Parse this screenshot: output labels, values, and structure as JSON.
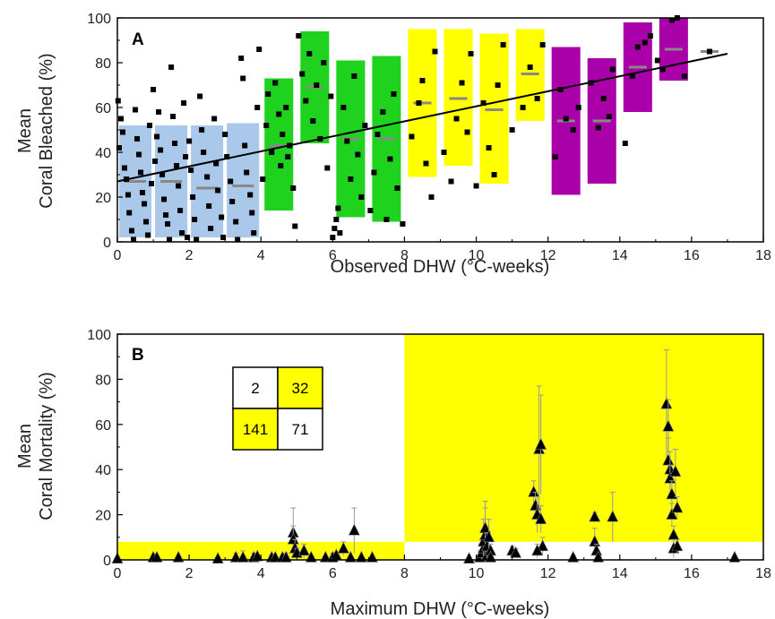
{
  "chart_data": [
    {
      "panel": "A",
      "type": "scatter",
      "xlabel": "Observed DHW (°C-weeks)",
      "ylabel": [
        "Mean",
        "Coral Bleached (%)"
      ],
      "xlim": [
        0,
        18
      ],
      "ylim": [
        0,
        100
      ],
      "xticks": [
        "0",
        "2",
        "4",
        "6",
        "8",
        "10",
        "12",
        "14",
        "16",
        "18"
      ],
      "yticks": [
        "0",
        "20",
        "40",
        "60",
        "80",
        "100"
      ],
      "colors": {
        "blue": "#a9c8ea",
        "green": "#1ed21e",
        "yellow": "#ffff00",
        "magenta": "#aa00aa",
        "median": "#888888",
        "points": "#000000"
      },
      "boxes": [
        {
          "x0": 0.05,
          "x1": 0.95,
          "low": 2,
          "high": 52,
          "median": 27,
          "color": "blue"
        },
        {
          "x0": 1.05,
          "x1": 1.95,
          "low": 2,
          "high": 52,
          "median": 27,
          "color": "blue"
        },
        {
          "x0": 2.05,
          "x1": 2.95,
          "low": 2,
          "high": 52,
          "median": 24,
          "color": "blue"
        },
        {
          "x0": 3.05,
          "x1": 3.95,
          "low": 2,
          "high": 53,
          "median": 25,
          "color": "blue"
        },
        {
          "x0": 4.1,
          "x1": 4.9,
          "low": 14,
          "high": 73,
          "median": 43,
          "color": "green"
        },
        {
          "x0": 5.1,
          "x1": 5.9,
          "low": 44,
          "high": 94,
          "median": 69,
          "color": "green"
        },
        {
          "x0": 6.1,
          "x1": 6.9,
          "low": 11,
          "high": 81,
          "median": 46,
          "color": "green"
        },
        {
          "x0": 7.1,
          "x1": 7.9,
          "low": 9,
          "high": 83,
          "median": 46,
          "color": "green"
        },
        {
          "x0": 8.1,
          "x1": 8.9,
          "low": 29,
          "high": 95,
          "median": 62,
          "color": "yellow"
        },
        {
          "x0": 9.1,
          "x1": 9.9,
          "low": 34,
          "high": 95,
          "median": 64,
          "color": "yellow"
        },
        {
          "x0": 10.1,
          "x1": 10.9,
          "low": 26,
          "high": 93,
          "median": 59,
          "color": "yellow"
        },
        {
          "x0": 11.1,
          "x1": 11.9,
          "low": 54,
          "high": 95,
          "median": 75,
          "color": "yellow"
        },
        {
          "x0": 12.1,
          "x1": 12.9,
          "low": 21,
          "high": 87,
          "median": 54,
          "color": "magenta"
        },
        {
          "x0": 13.1,
          "x1": 13.9,
          "low": 26,
          "high": 82,
          "median": 54,
          "color": "magenta"
        },
        {
          "x0": 14.1,
          "x1": 14.9,
          "low": 58,
          "high": 98,
          "median": 78,
          "color": "magenta"
        },
        {
          "x0": 15.1,
          "x1": 15.9,
          "low": 72,
          "high": 100,
          "median": 86,
          "color": "magenta"
        },
        {
          "x0": 16.1,
          "x1": 16.9,
          "low": 85,
          "high": 85,
          "median": 85,
          "color": "magenta"
        }
      ],
      "trend_line": {
        "x": [
          0,
          17
        ],
        "y": [
          27,
          84
        ]
      },
      "points": [
        [
          0.02,
          63
        ],
        [
          0.05,
          42
        ],
        [
          0.1,
          55
        ],
        [
          0.15,
          49
        ],
        [
          0.2,
          33
        ],
        [
          0.25,
          28
        ],
        [
          0.3,
          21
        ],
        [
          0.33,
          13
        ],
        [
          0.4,
          5
        ],
        [
          0.45,
          1
        ],
        [
          0.5,
          59
        ],
        [
          0.55,
          46
        ],
        [
          0.6,
          39
        ],
        [
          0.65,
          31
        ],
        [
          0.7,
          22
        ],
        [
          0.75,
          17
        ],
        [
          0.8,
          9
        ],
        [
          0.85,
          3
        ],
        [
          0.9,
          52
        ],
        [
          0.95,
          26
        ],
        [
          1.0,
          68
        ],
        [
          1.05,
          36
        ],
        [
          1.1,
          47
        ],
        [
          1.15,
          58
        ],
        [
          1.2,
          41
        ],
        [
          1.25,
          30
        ],
        [
          1.3,
          19
        ],
        [
          1.35,
          12
        ],
        [
          1.4,
          8
        ],
        [
          1.45,
          1
        ],
        [
          1.5,
          78
        ],
        [
          1.55,
          56
        ],
        [
          1.6,
          44
        ],
        [
          1.65,
          34
        ],
        [
          1.7,
          25
        ],
        [
          1.75,
          14
        ],
        [
          1.8,
          4
        ],
        [
          1.85,
          62
        ],
        [
          1.9,
          38
        ],
        [
          1.95,
          2
        ],
        [
          2.0,
          45
        ],
        [
          2.05,
          32
        ],
        [
          2.1,
          20
        ],
        [
          2.15,
          10
        ],
        [
          2.2,
          1
        ],
        [
          2.3,
          65
        ],
        [
          2.35,
          50
        ],
        [
          2.4,
          40
        ],
        [
          2.5,
          29
        ],
        [
          2.55,
          16
        ],
        [
          2.6,
          6
        ],
        [
          2.7,
          55
        ],
        [
          2.75,
          35
        ],
        [
          2.8,
          23
        ],
        [
          2.9,
          11
        ],
        [
          2.95,
          2
        ],
        [
          3.0,
          48
        ],
        [
          3.05,
          38
        ],
        [
          3.15,
          27
        ],
        [
          3.2,
          18
        ],
        [
          3.3,
          9
        ],
        [
          3.35,
          1
        ],
        [
          3.45,
          82
        ],
        [
          3.5,
          73
        ],
        [
          3.55,
          43
        ],
        [
          3.6,
          31
        ],
        [
          3.7,
          21
        ],
        [
          3.75,
          13
        ],
        [
          3.8,
          4
        ],
        [
          3.9,
          60
        ],
        [
          3.95,
          86
        ],
        [
          4.05,
          28
        ],
        [
          4.15,
          52
        ],
        [
          4.2,
          66
        ],
        [
          4.3,
          40
        ],
        [
          4.4,
          71
        ],
        [
          4.5,
          57
        ],
        [
          4.55,
          34
        ],
        [
          4.6,
          48
        ],
        [
          4.7,
          60
        ],
        [
          4.75,
          38
        ],
        [
          4.8,
          43
        ],
        [
          4.9,
          24
        ],
        [
          4.95,
          7
        ],
        [
          5.05,
          92
        ],
        [
          5.15,
          75
        ],
        [
          5.25,
          63
        ],
        [
          5.35,
          84
        ],
        [
          5.45,
          54
        ],
        [
          5.55,
          70
        ],
        [
          5.65,
          46
        ],
        [
          5.75,
          80
        ],
        [
          5.85,
          33
        ],
        [
          5.95,
          65
        ],
        [
          6.0,
          2
        ],
        [
          6.05,
          6
        ],
        [
          6.1,
          10
        ],
        [
          6.15,
          15
        ],
        [
          6.2,
          4
        ],
        [
          6.3,
          60
        ],
        [
          6.4,
          45
        ],
        [
          6.5,
          28
        ],
        [
          6.6,
          74
        ],
        [
          6.7,
          39
        ],
        [
          6.8,
          20
        ],
        [
          6.9,
          52
        ],
        [
          7.05,
          14
        ],
        [
          7.15,
          31
        ],
        [
          7.25,
          48
        ],
        [
          7.4,
          58
        ],
        [
          7.5,
          10
        ],
        [
          7.6,
          37
        ],
        [
          7.7,
          66
        ],
        [
          7.8,
          24
        ],
        [
          7.95,
          8
        ],
        [
          8.2,
          47
        ],
        [
          8.4,
          62
        ],
        [
          8.5,
          72
        ],
        [
          8.6,
          35
        ],
        [
          8.75,
          20
        ],
        [
          8.85,
          85
        ],
        [
          9.1,
          40
        ],
        [
          9.3,
          27
        ],
        [
          9.45,
          55
        ],
        [
          9.6,
          71
        ],
        [
          9.75,
          49
        ],
        [
          9.85,
          84
        ],
        [
          10.0,
          25
        ],
        [
          10.2,
          62
        ],
        [
          10.35,
          42
        ],
        [
          10.5,
          30
        ],
        [
          10.6,
          70
        ],
        [
          10.75,
          88
        ],
        [
          11.0,
          50
        ],
        [
          11.3,
          60
        ],
        [
          11.5,
          78
        ],
        [
          11.7,
          64
        ],
        [
          11.85,
          88
        ],
        [
          12.2,
          38
        ],
        [
          12.35,
          68
        ],
        [
          12.5,
          55
        ],
        [
          12.7,
          50
        ],
        [
          12.85,
          60
        ],
        [
          13.2,
          71
        ],
        [
          13.4,
          51
        ],
        [
          13.55,
          64
        ],
        [
          13.7,
          56
        ],
        [
          13.8,
          77
        ],
        [
          14.15,
          44
        ],
        [
          14.35,
          74
        ],
        [
          14.5,
          87
        ],
        [
          14.7,
          89
        ],
        [
          14.85,
          92
        ],
        [
          15.05,
          81
        ],
        [
          15.2,
          77
        ],
        [
          15.45,
          99
        ],
        [
          15.6,
          100
        ],
        [
          15.8,
          74
        ],
        [
          16.5,
          85
        ]
      ]
    },
    {
      "panel": "B",
      "type": "scatter",
      "xlabel": "Maximum DHW (°C-weeks)",
      "ylabel": [
        "Mean",
        "Coral Mortality (%)"
      ],
      "xlim": [
        0,
        18
      ],
      "ylim": [
        0,
        100
      ],
      "xticks": [
        "0",
        "2",
        "4",
        "6",
        "8",
        "10",
        "12",
        "14",
        "16",
        "18"
      ],
      "yticks": [
        "0",
        "20",
        "40",
        "60",
        "80",
        "100"
      ],
      "shaded_regions": [
        {
          "x0": 0,
          "x1": 8,
          "y0": 0,
          "y1": 8,
          "color": "#ffff00"
        },
        {
          "x0": 8,
          "x1": 18,
          "y0": 8,
          "y1": 100,
          "color": "#ffff00"
        }
      ],
      "contingency": {
        "cells": [
          "2",
          "32",
          "141",
          "71"
        ],
        "highlight": [
          false,
          true,
          true,
          false
        ]
      },
      "points": [
        {
          "x": 0.0,
          "y": 0.5,
          "err": 0
        },
        {
          "x": 1.0,
          "y": 1,
          "err": 0
        },
        {
          "x": 1.1,
          "y": 1,
          "err": 0
        },
        {
          "x": 1.7,
          "y": 1,
          "err": 0
        },
        {
          "x": 2.8,
          "y": 0.5,
          "err": 0
        },
        {
          "x": 3.3,
          "y": 1,
          "err": 2
        },
        {
          "x": 3.5,
          "y": 1,
          "err": 3
        },
        {
          "x": 3.8,
          "y": 1,
          "err": 2
        },
        {
          "x": 3.9,
          "y": 1.5,
          "err": 1
        },
        {
          "x": 4.3,
          "y": 1,
          "err": 1
        },
        {
          "x": 4.4,
          "y": 1,
          "err": 1
        },
        {
          "x": 4.6,
          "y": 1,
          "err": 0
        },
        {
          "x": 4.7,
          "y": 1,
          "err": 2
        },
        {
          "x": 4.9,
          "y": 12,
          "err": 11
        },
        {
          "x": 4.9,
          "y": 9,
          "err": 6
        },
        {
          "x": 4.95,
          "y": 5,
          "err": 4
        },
        {
          "x": 5.0,
          "y": 3,
          "err": 2
        },
        {
          "x": 5.2,
          "y": 4,
          "err": 3
        },
        {
          "x": 5.4,
          "y": 1,
          "err": 1
        },
        {
          "x": 5.8,
          "y": 1,
          "err": 0
        },
        {
          "x": 6.0,
          "y": 1,
          "err": 2
        },
        {
          "x": 6.1,
          "y": 2,
          "err": 1
        },
        {
          "x": 6.3,
          "y": 5,
          "err": 3
        },
        {
          "x": 6.5,
          "y": 1,
          "err": 0
        },
        {
          "x": 6.6,
          "y": 13,
          "err": 10
        },
        {
          "x": 6.8,
          "y": 1,
          "err": 0
        },
        {
          "x": 7.1,
          "y": 1,
          "err": 0
        },
        {
          "x": 9.8,
          "y": 0.5,
          "err": 0
        },
        {
          "x": 10.1,
          "y": 1,
          "err": 3
        },
        {
          "x": 10.15,
          "y": 3,
          "err": 6
        },
        {
          "x": 10.2,
          "y": 5,
          "err": 8
        },
        {
          "x": 10.2,
          "y": 8,
          "err": 10
        },
        {
          "x": 10.25,
          "y": 11,
          "err": 12
        },
        {
          "x": 10.25,
          "y": 14,
          "err": 12
        },
        {
          "x": 10.3,
          "y": 2,
          "err": 4
        },
        {
          "x": 10.3,
          "y": 6,
          "err": 6
        },
        {
          "x": 10.35,
          "y": 10,
          "err": 8
        },
        {
          "x": 10.4,
          "y": 4,
          "err": 3
        },
        {
          "x": 10.4,
          "y": 1,
          "err": 1
        },
        {
          "x": 11.0,
          "y": 4,
          "err": 2
        },
        {
          "x": 11.1,
          "y": 3,
          "err": 2
        },
        {
          "x": 11.6,
          "y": 30,
          "err": 5
        },
        {
          "x": 11.65,
          "y": 24,
          "err": 6
        },
        {
          "x": 11.7,
          "y": 20,
          "err": 8
        },
        {
          "x": 11.75,
          "y": 49,
          "err": 28
        },
        {
          "x": 11.8,
          "y": 51,
          "err": 22
        },
        {
          "x": 11.8,
          "y": 18,
          "err": 6
        },
        {
          "x": 11.85,
          "y": 6,
          "err": 4
        },
        {
          "x": 11.7,
          "y": 4,
          "err": 3
        },
        {
          "x": 12.7,
          "y": 1,
          "err": 1
        },
        {
          "x": 13.3,
          "y": 19,
          "err": 2
        },
        {
          "x": 13.3,
          "y": 8,
          "err": 6
        },
        {
          "x": 13.35,
          "y": 4,
          "err": 3
        },
        {
          "x": 13.4,
          "y": 1,
          "err": 1
        },
        {
          "x": 13.8,
          "y": 19,
          "err": 11
        },
        {
          "x": 15.3,
          "y": 69,
          "err": 24
        },
        {
          "x": 15.35,
          "y": 59,
          "err": 12
        },
        {
          "x": 15.35,
          "y": 44,
          "err": 10
        },
        {
          "x": 15.4,
          "y": 40,
          "err": 8
        },
        {
          "x": 15.4,
          "y": 36,
          "err": 6
        },
        {
          "x": 15.45,
          "y": 29,
          "err": 6
        },
        {
          "x": 15.45,
          "y": 20,
          "err": 5
        },
        {
          "x": 15.5,
          "y": 11,
          "err": 4
        },
        {
          "x": 15.5,
          "y": 5,
          "err": 4
        },
        {
          "x": 15.55,
          "y": 39,
          "err": 10
        },
        {
          "x": 15.6,
          "y": 23,
          "err": 5
        },
        {
          "x": 15.6,
          "y": 6,
          "err": 3
        },
        {
          "x": 17.2,
          "y": 1,
          "err": 0
        }
      ]
    }
  ]
}
